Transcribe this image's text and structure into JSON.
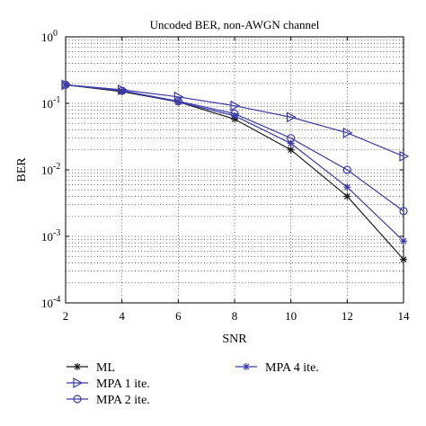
{
  "chart_data": {
    "type": "line",
    "title": "Uncoded BER, non-AWGN channel",
    "xlabel": "SNR",
    "ylabel": "BER",
    "xlim": [
      2,
      14
    ],
    "ylim": [
      0.0001,
      1
    ],
    "yscale": "log",
    "grid": true,
    "x_ticks": [
      "2",
      "4",
      "6",
      "8",
      "10",
      "12",
      "14"
    ],
    "y_ticks": [
      {
        "base": "10",
        "exp": "0"
      },
      {
        "base": "10",
        "exp": "-1"
      },
      {
        "base": "10",
        "exp": "-2"
      },
      {
        "base": "10",
        "exp": "-3"
      },
      {
        "base": "10",
        "exp": "-4"
      }
    ],
    "x": [
      2,
      4,
      6,
      8,
      10,
      12,
      14
    ],
    "series": [
      {
        "name": "ML",
        "marker": "star",
        "color": "#1a1a1a",
        "values": [
          0.19,
          0.15,
          0.105,
          0.058,
          0.02,
          0.004,
          0.00045
        ]
      },
      {
        "name": "MPA 1 ite.",
        "marker": "triangle-right",
        "color": "#3b3ba8",
        "values": [
          0.19,
          0.16,
          0.125,
          0.092,
          0.062,
          0.036,
          0.016
        ]
      },
      {
        "name": "MPA 2 ite.",
        "marker": "circle",
        "color": "#3b3ba8",
        "values": [
          0.19,
          0.155,
          0.108,
          0.07,
          0.03,
          0.01,
          0.0024
        ]
      },
      {
        "name": "MPA 4 ite.",
        "marker": "star",
        "color": "#3b3ba8",
        "values": [
          0.19,
          0.155,
          0.105,
          0.065,
          0.025,
          0.0055,
          0.00085
        ]
      }
    ],
    "legend_position": "bottom"
  }
}
